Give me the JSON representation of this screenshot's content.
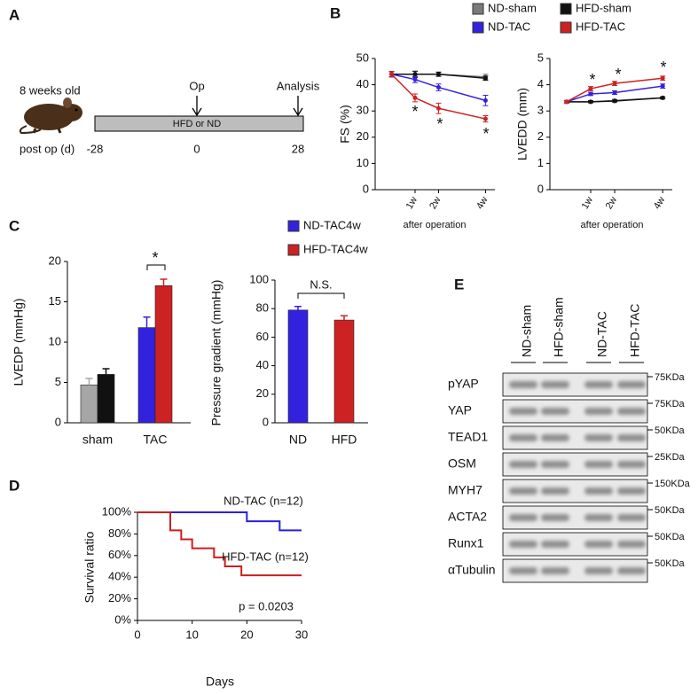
{
  "panel_labels": [
    "A",
    "B",
    "C",
    "D",
    "E"
  ],
  "timeline": {
    "age": "8 weeks old",
    "op": "Op",
    "analysis": "Analysis",
    "bar_label": "HFD or ND",
    "axis_label": "post op (d)",
    "ticks": [
      "-28",
      "0",
      "28"
    ]
  },
  "chart_data": [
    {
      "type": "line",
      "y_label": "FS (%)",
      "x_label": "after operation",
      "x": [
        0,
        1,
        2,
        4
      ],
      "xlim": [
        -0.7,
        4.4
      ],
      "xticks": [
        {
          "value": 1,
          "label": "1w"
        },
        {
          "value": 2,
          "label": "2w"
        },
        {
          "value": 4,
          "label": "4w"
        }
      ],
      "ylim": [
        0,
        50
      ],
      "yticks": [
        0,
        10,
        20,
        30,
        40,
        50
      ],
      "series": [
        {
          "name": "ND-sham",
          "color": "#7a7a7a",
          "values": [
            44,
            44,
            44,
            43
          ],
          "errors": [
            1,
            1,
            0.8,
            1
          ]
        },
        {
          "name": "HFD-sham",
          "color": "#111111",
          "values": [
            44,
            44,
            44,
            42.5
          ],
          "errors": [
            1,
            1.2,
            0.8,
            0.8
          ]
        },
        {
          "name": "ND-TAC",
          "color": "#3322dd",
          "values": [
            44,
            42,
            39,
            34
          ],
          "errors": [
            1,
            1.2,
            1.3,
            2
          ]
        },
        {
          "name": "HFD-TAC",
          "color": "#cc2222",
          "values": [
            44,
            35,
            31,
            27
          ],
          "errors": [
            1,
            1.5,
            2,
            1.2
          ]
        }
      ],
      "annotations": [
        "*",
        "*",
        "*"
      ]
    },
    {
      "type": "line",
      "y_label": "LVEDD (mm)",
      "x_label": "after operation",
      "x": [
        0,
        1,
        2,
        4
      ],
      "xlim": [
        -0.7,
        4.4
      ],
      "xticks": [
        {
          "value": 1,
          "label": "1w"
        },
        {
          "value": 2,
          "label": "2w"
        },
        {
          "value": 4,
          "label": "4w"
        }
      ],
      "ylim": [
        0,
        5
      ],
      "yticks": [
        0,
        1,
        2,
        3,
        4,
        5
      ],
      "series": [
        {
          "color": "#7a7a7a",
          "values": [
            3.35,
            3.35,
            3.4,
            3.5
          ],
          "errors": [
            0.04,
            0.04,
            0.04,
            0.04
          ]
        },
        {
          "color": "#111111",
          "values": [
            3.35,
            3.35,
            3.38,
            3.5
          ],
          "errors": [
            0.04,
            0.04,
            0.04,
            0.04
          ]
        },
        {
          "color": "#3322dd",
          "values": [
            3.35,
            3.65,
            3.7,
            3.95
          ],
          "errors": [
            0.05,
            0.06,
            0.07,
            0.08
          ]
        },
        {
          "color": "#cc2222",
          "values": [
            3.35,
            3.85,
            4.05,
            4.25
          ],
          "errors": [
            0.05,
            0.08,
            0.08,
            0.08
          ]
        }
      ],
      "annotations": [
        "*",
        "*",
        "*"
      ]
    },
    {
      "type": "bar",
      "y_label": "LVEDP (mmHg)",
      "categories": [
        "sham",
        "TAC"
      ],
      "ylim": [
        0,
        20
      ],
      "yticks": [
        0,
        5,
        10,
        15,
        20
      ],
      "series": [
        {
          "name": "ND-TAC4w",
          "color": "#3322dd",
          "colors": [
            "#a6a6a6",
            "#3322dd"
          ],
          "values": [
            4.7,
            11.8
          ],
          "errors": [
            0.8,
            1.3
          ]
        },
        {
          "name": "HFD-TAC4w",
          "color": "#cc2222",
          "colors": [
            "#111111",
            "#cc2222"
          ],
          "values": [
            6.0,
            17.0
          ],
          "errors": [
            0.7,
            0.8
          ]
        }
      ],
      "annotations": [
        "*"
      ]
    },
    {
      "type": "bar",
      "y_label": "Pressure gradient (mmHg)",
      "categories": [
        "ND",
        "HFD"
      ],
      "ylim": [
        0,
        100
      ],
      "yticks": [
        0,
        20,
        40,
        60,
        80,
        100
      ],
      "values": [
        79,
        72
      ],
      "errors": [
        2.5,
        3
      ],
      "colors": [
        "#3322dd",
        "#cc2222"
      ],
      "annotations": [
        "N.S."
      ]
    },
    {
      "type": "line",
      "y_label": "Survival ratio",
      "x_label": "Days",
      "xlim": [
        0,
        30
      ],
      "xticks": [
        0,
        10,
        20,
        30
      ],
      "ylim": [
        0,
        100
      ],
      "yticks": [
        {
          "value": 0,
          "label": "0%"
        },
        {
          "value": 20,
          "label": "20%"
        },
        {
          "value": 40,
          "label": "40%"
        },
        {
          "value": 60,
          "label": "60%"
        },
        {
          "value": 80,
          "label": "80%"
        },
        {
          "value": 100,
          "label": "100%"
        }
      ],
      "series": [
        {
          "name": "ND-TAC (n=12)",
          "color": "#2a1fe0",
          "x": [
            0,
            20,
            20,
            26,
            26,
            30
          ],
          "values": [
            100,
            100,
            91.7,
            91.7,
            83.3,
            83.3
          ]
        },
        {
          "name": "HFD-TAC (n=12)",
          "color": "#cc1f1f",
          "x": [
            0,
            6,
            6,
            8,
            8,
            10,
            10,
            14,
            14,
            16,
            16,
            19,
            19,
            30
          ],
          "values": [
            100,
            100,
            83.3,
            83.3,
            75,
            75,
            66.7,
            66.7,
            58.3,
            58.3,
            50,
            50,
            41.7,
            41.7
          ]
        }
      ],
      "annotations": [
        "p = 0.0203"
      ]
    }
  ],
  "blot": {
    "lanes": [
      "ND-sham",
      "HFD-sham",
      "ND-TAC",
      "HFD-TAC"
    ],
    "rows": [
      {
        "protein": "pYAP",
        "marker": "75KDa"
      },
      {
        "protein": "YAP",
        "marker": "75KDa"
      },
      {
        "protein": "TEAD1",
        "marker": "50KDa"
      },
      {
        "protein": "OSM",
        "marker": "25KDa"
      },
      {
        "protein": "MYH7",
        "marker": "150KDa"
      },
      {
        "protein": "ACTA2",
        "marker": "50KDa"
      },
      {
        "protein": "Runx1",
        "marker": "50KDa"
      },
      {
        "protein": "αTubulin",
        "marker": "50KDa"
      }
    ]
  }
}
